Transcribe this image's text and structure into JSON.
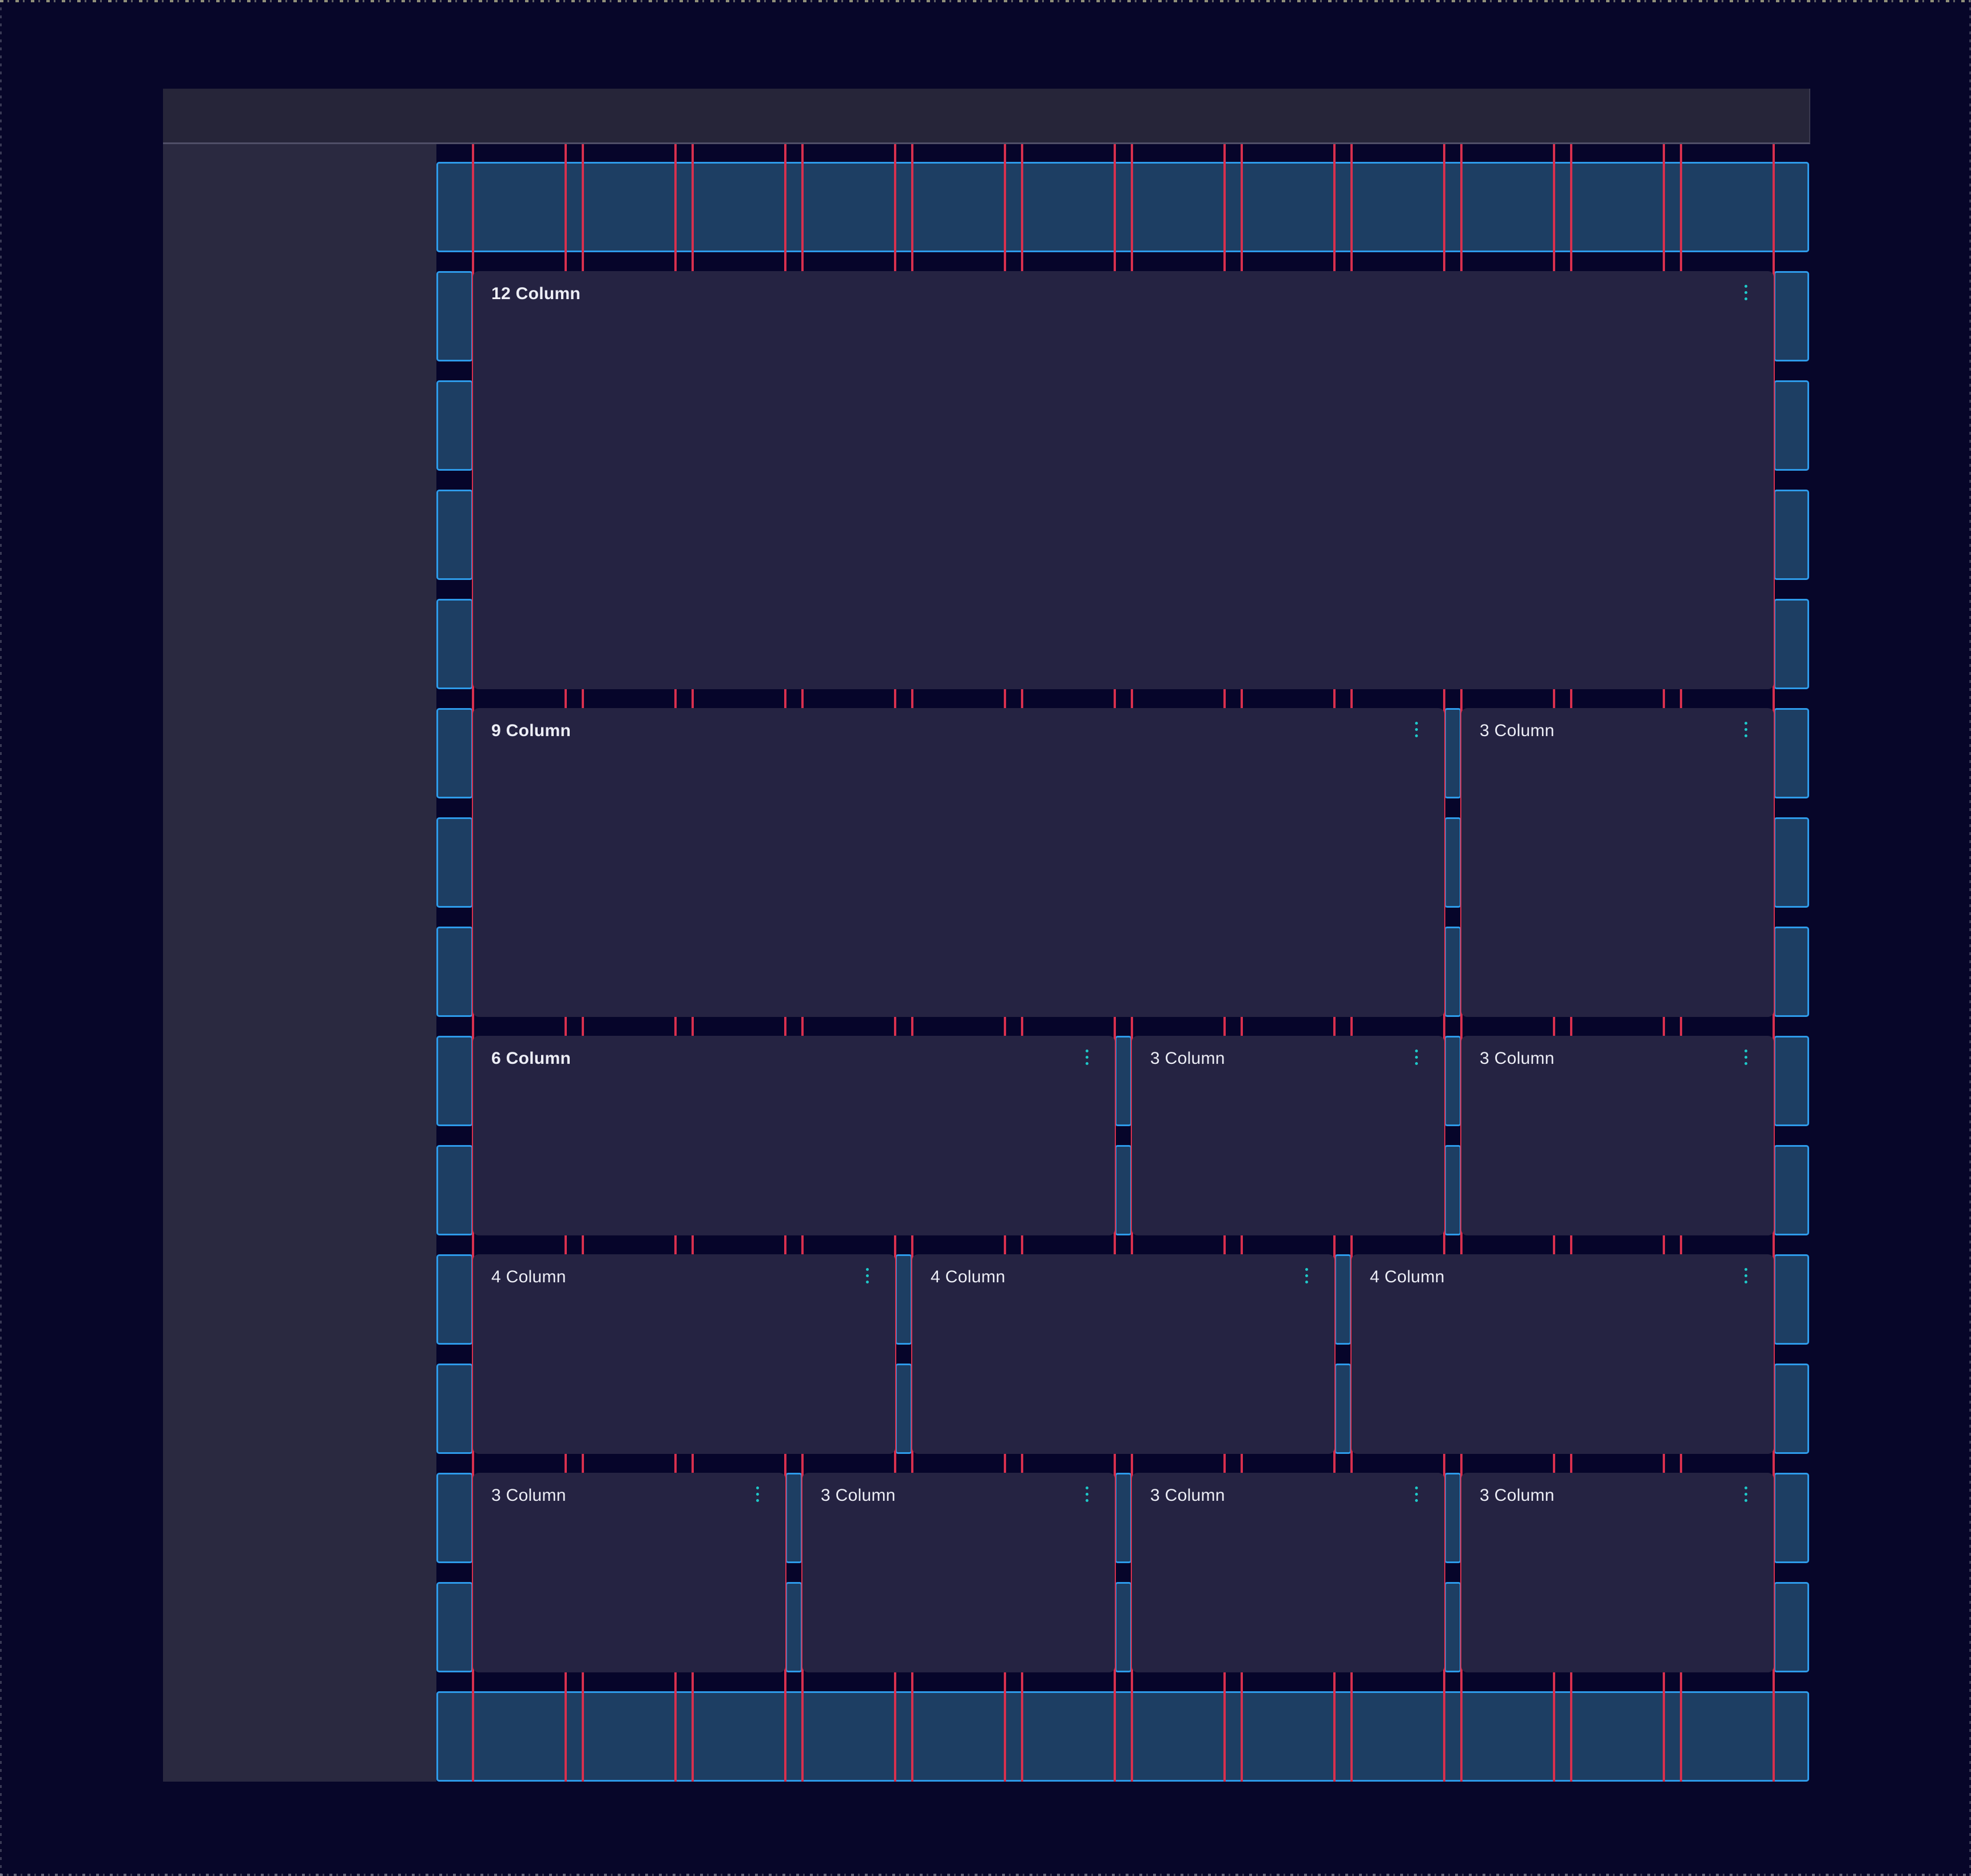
{
  "grid": {
    "column_count": 12,
    "colors": {
      "column_guide_fill": "#1d3e63",
      "column_guide_border": "#2e9bea",
      "gutter_line": "#d8304e",
      "menu_dots": "#1ec9c9",
      "card_background": "#252342",
      "canvas_background": "#06052a"
    }
  },
  "icons": {
    "card_menu": "kebab-vertical-dots"
  },
  "cards": [
    {
      "label": "12 Column",
      "span": 12,
      "emphasis": true
    },
    {
      "label": "9 Column",
      "span": 9,
      "emphasis": true
    },
    {
      "label": "3 Column",
      "span": 3,
      "emphasis": false
    },
    {
      "label": "6 Column",
      "span": 6,
      "emphasis": true
    },
    {
      "label": "3 Column",
      "span": 3,
      "emphasis": false
    },
    {
      "label": "3 Column",
      "span": 3,
      "emphasis": false
    },
    {
      "label": "4 Column",
      "span": 4,
      "emphasis": false
    },
    {
      "label": "4 Column",
      "span": 4,
      "emphasis": false
    },
    {
      "label": "4 Column",
      "span": 4,
      "emphasis": false
    },
    {
      "label": "3 Column",
      "span": 3,
      "emphasis": false
    },
    {
      "label": "3 Column",
      "span": 3,
      "emphasis": false
    },
    {
      "label": "3 Column",
      "span": 3,
      "emphasis": false
    },
    {
      "label": "3 Column",
      "span": 3,
      "emphasis": false
    }
  ]
}
